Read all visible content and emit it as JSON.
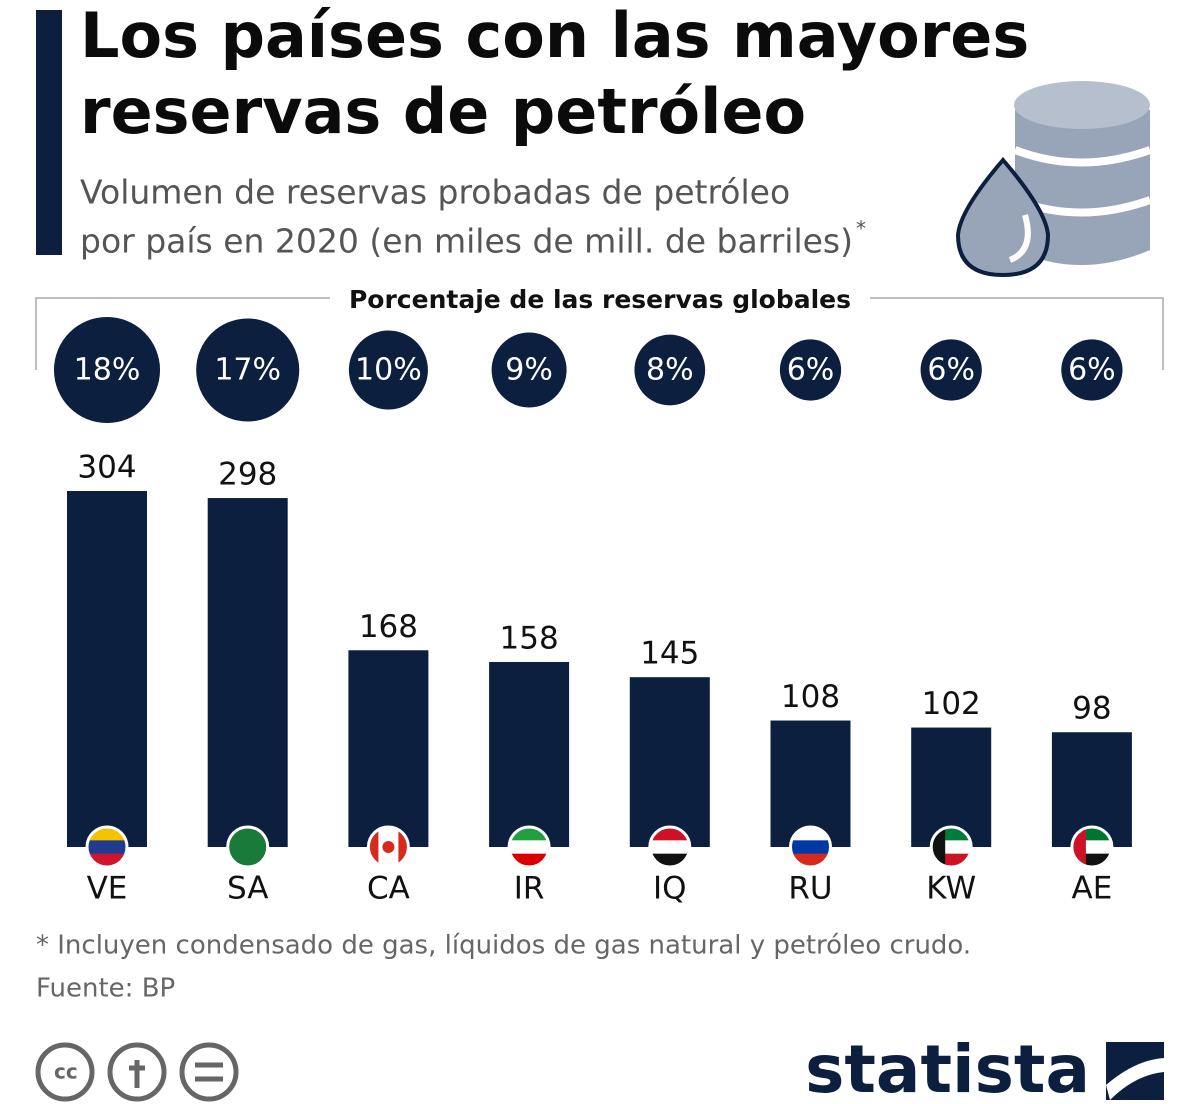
{
  "chart_data": {
    "type": "bar",
    "title": "Los países con las mayores reservas de petróleo",
    "subtitle": "Volumen de reservas probadas de petróleo por país en 2020 (en miles de mill. de barriles)",
    "subtitle_note": "*",
    "share_title": "Porcentaje de las reservas globales",
    "categories": [
      "VE",
      "SA",
      "CA",
      "IR",
      "IQ",
      "RU",
      "KW",
      "AE"
    ],
    "values": [
      304,
      298,
      168,
      158,
      145,
      108,
      102,
      98
    ],
    "share_values": [
      18,
      17,
      10,
      9,
      8,
      6,
      6,
      6
    ],
    "share_labels": [
      "18%",
      "17%",
      "10%",
      "9%",
      "8%",
      "6%",
      "6%",
      "6%"
    ],
    "color": "#0c1f3f",
    "footnote": "* Incluyen condensado de gas, líquidos de gas natural y petróleo crudo.",
    "source": "Fuente: BP",
    "brand": "statista"
  }
}
